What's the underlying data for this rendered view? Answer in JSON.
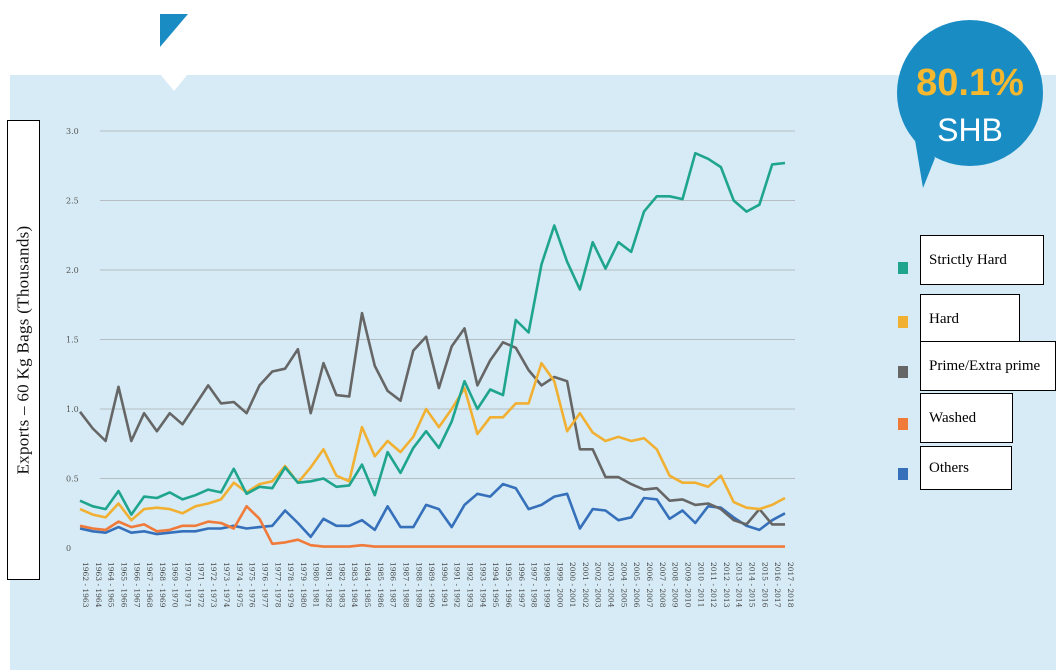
{
  "badge": {
    "percent": "80.1%",
    "label": "SHB",
    "circle_color": "#1a8cc4",
    "percent_color": "#f5b82e"
  },
  "colors": {
    "panel": "#d6ebf5",
    "gridline": "#b5bcc2",
    "accent": "#1a8cc4"
  },
  "chart_data": {
    "type": "line",
    "ylabel": "Exports – 60 Kg Bags (Thousands)",
    "xlabel": "",
    "ylim": [
      0,
      3.0
    ],
    "yticks": [
      "0",
      "0.5",
      "1.0",
      "1.5",
      "2.0",
      "2.5",
      "3.0"
    ],
    "grid": true,
    "legend_position": "right",
    "categories": [
      "1962 - 1963",
      "1963 - 1964",
      "1964 - 1965",
      "1965 - 1966",
      "1966 - 1967",
      "1967 - 1968",
      "1968 - 1969",
      "1969 - 1970",
      "1970 - 1971",
      "1971 - 1972",
      "1972 - 1973",
      "1973 - 1974",
      "1974 - 1975",
      "1975 - 1976",
      "1976 - 1977",
      "1977 - 1978",
      "1978 - 1979",
      "1979 - 1980",
      "1980 - 1981",
      "1981 - 1982",
      "1982 - 1983",
      "1983 - 1984",
      "1984 - 1985",
      "1985 - 1986",
      "1986 - 1987",
      "1987 - 1988",
      "1988 - 1989",
      "1989 - 1990",
      "1990 - 1991",
      "1991 - 1992",
      "1992 - 1993",
      "1993 - 1994",
      "1994 - 1995",
      "1995 - 1996",
      "1996 - 1997",
      "1997 - 1998",
      "1998 - 1999",
      "1999 - 2000",
      "2000 - 2001",
      "2001 - 2002",
      "2002 - 2003",
      "2003 - 2004",
      "2004 - 2005",
      "2005 - 2006",
      "2006 - 2007",
      "2007 - 2008",
      "2008 - 2009",
      "2009 - 2010",
      "2010 - 2011",
      "2011 - 2012",
      "2012 - 2013",
      "2013 - 2014",
      "2014 - 2015",
      "2015 - 2016",
      "2016 - 2017",
      "2017 - 2018"
    ],
    "series": [
      {
        "name": "Strictly Hard",
        "color": "#1fa58e",
        "values": [
          0.34,
          0.3,
          0.28,
          0.41,
          0.24,
          0.37,
          0.36,
          0.4,
          0.35,
          0.38,
          0.42,
          0.4,
          0.57,
          0.39,
          0.44,
          0.43,
          0.58,
          0.47,
          0.48,
          0.5,
          0.44,
          0.45,
          0.6,
          0.38,
          0.69,
          0.54,
          0.72,
          0.84,
          0.72,
          0.91,
          1.2,
          1.0,
          1.14,
          1.1,
          1.64,
          1.55,
          2.04,
          2.32,
          2.06,
          1.86,
          2.2,
          2.01,
          2.2,
          2.13,
          2.42,
          2.53,
          2.53,
          2.51,
          2.84,
          2.8,
          2.74,
          2.5,
          2.42,
          2.47,
          2.76,
          2.77
        ]
      },
      {
        "name": "Hard",
        "color": "#f2b033",
        "values": [
          0.28,
          0.24,
          0.22,
          0.32,
          0.2,
          0.28,
          0.29,
          0.28,
          0.25,
          0.3,
          0.32,
          0.35,
          0.47,
          0.4,
          0.46,
          0.48,
          0.59,
          0.47,
          0.58,
          0.71,
          0.52,
          0.48,
          0.87,
          0.66,
          0.77,
          0.69,
          0.8,
          1.0,
          0.87,
          1.0,
          1.15,
          0.82,
          0.94,
          0.94,
          1.04,
          1.04,
          1.33,
          1.2,
          0.84,
          0.97,
          0.83,
          0.77,
          0.8,
          0.77,
          0.79,
          0.71,
          0.52,
          0.47,
          0.47,
          0.44,
          0.52,
          0.33,
          0.29,
          0.28,
          0.31,
          0.36
        ]
      },
      {
        "name": "Prime/Extra prime",
        "color": "#666666",
        "values": [
          0.98,
          0.86,
          0.77,
          1.16,
          0.77,
          0.97,
          0.84,
          0.97,
          0.89,
          1.03,
          1.17,
          1.04,
          1.05,
          0.97,
          1.17,
          1.27,
          1.29,
          1.43,
          0.97,
          1.33,
          1.1,
          1.09,
          1.69,
          1.31,
          1.13,
          1.06,
          1.42,
          1.52,
          1.15,
          1.45,
          1.58,
          1.17,
          1.35,
          1.48,
          1.44,
          1.28,
          1.17,
          1.23,
          1.2,
          0.71,
          0.71,
          0.51,
          0.51,
          0.46,
          0.42,
          0.43,
          0.34,
          0.35,
          0.31,
          0.32,
          0.28,
          0.2,
          0.17,
          0.28,
          0.17,
          0.17
        ]
      },
      {
        "name": "Washed",
        "color": "#f07a3a",
        "values": [
          0.16,
          0.14,
          0.13,
          0.19,
          0.15,
          0.17,
          0.12,
          0.13,
          0.16,
          0.16,
          0.19,
          0.18,
          0.14,
          0.3,
          0.21,
          0.03,
          0.04,
          0.06,
          0.02,
          0.01,
          0.01,
          0.01,
          0.02,
          0.01,
          0.01,
          0.01,
          0.01,
          0.01,
          0.01,
          0.01,
          0.01,
          0.01,
          0.01,
          0.01,
          0.01,
          0.01,
          0.01,
          0.01,
          0.01,
          0.01,
          0.01,
          0.01,
          0.01,
          0.01,
          0.01,
          0.01,
          0.01,
          0.01,
          0.01,
          0.01,
          0.01,
          0.01,
          0.01,
          0.01,
          0.01,
          0.01
        ]
      },
      {
        "name": "Others",
        "color": "#3670bb",
        "values": [
          0.14,
          0.12,
          0.11,
          0.15,
          0.11,
          0.12,
          0.1,
          0.11,
          0.12,
          0.12,
          0.14,
          0.14,
          0.16,
          0.14,
          0.15,
          0.16,
          0.27,
          0.18,
          0.08,
          0.21,
          0.16,
          0.16,
          0.2,
          0.13,
          0.3,
          0.15,
          0.15,
          0.31,
          0.28,
          0.15,
          0.31,
          0.39,
          0.37,
          0.46,
          0.43,
          0.28,
          0.31,
          0.37,
          0.39,
          0.14,
          0.28,
          0.27,
          0.2,
          0.22,
          0.36,
          0.35,
          0.21,
          0.27,
          0.18,
          0.3,
          0.29,
          0.22,
          0.16,
          0.13,
          0.2,
          0.25
        ]
      }
    ]
  }
}
